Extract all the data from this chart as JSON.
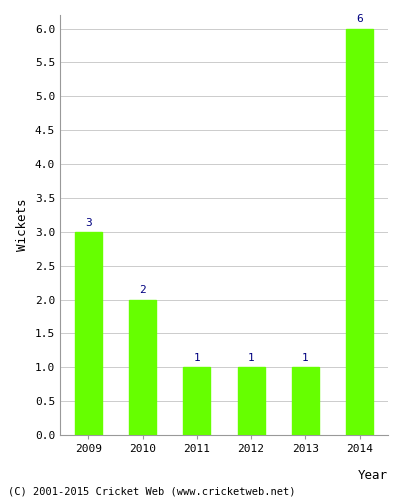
{
  "years": [
    "2009",
    "2010",
    "2011",
    "2012",
    "2013",
    "2014"
  ],
  "values": [
    3,
    2,
    1,
    1,
    1,
    6
  ],
  "bar_color": "#66ff00",
  "bar_edgecolor": "#66ff00",
  "xlabel": "Year",
  "ylabel": "Wickets",
  "ylim": [
    0,
    6.2
  ],
  "yticks": [
    0.0,
    0.5,
    1.0,
    1.5,
    2.0,
    2.5,
    3.0,
    3.5,
    4.0,
    4.5,
    5.0,
    5.5,
    6.0
  ],
  "label_color": "#000080",
  "label_fontsize": 8,
  "axis_label_fontsize": 9,
  "tick_fontsize": 8,
  "footer_text": "(C) 2001-2015 Cricket Web (www.cricketweb.net)",
  "footer_fontsize": 7.5,
  "background_color": "#ffffff",
  "grid_color": "#cccccc",
  "bar_width": 0.5
}
